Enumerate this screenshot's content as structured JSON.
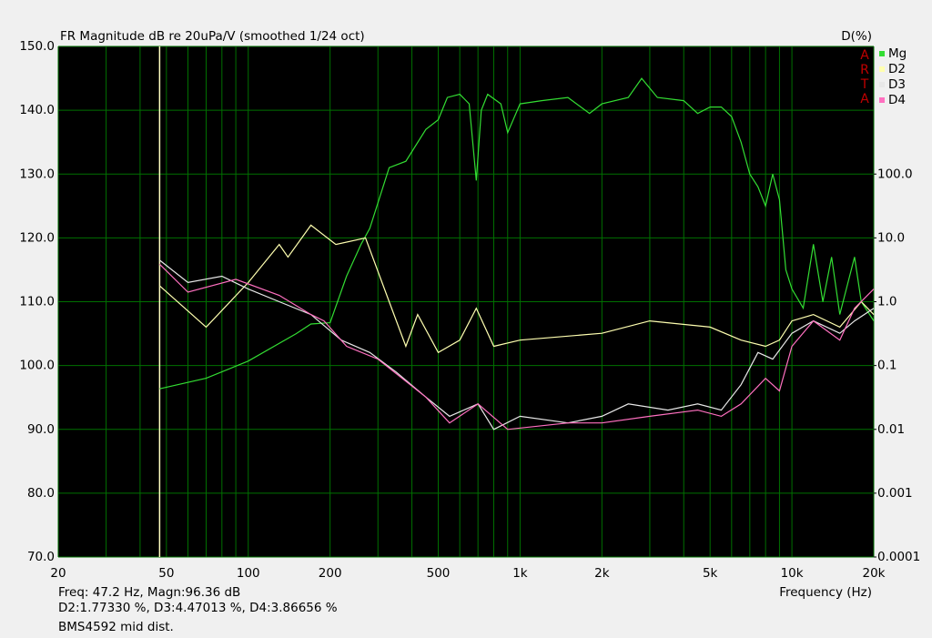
{
  "chart_data": {
    "type": "line",
    "title": "FR Magnitude dB re 20uPa/V (smoothed 1/24 oct)",
    "y2_label": "D(%)",
    "x_label": "Frequency (Hz)",
    "logo": "ARTA",
    "x_log": true,
    "y2_log": true,
    "grid": true,
    "legend": "top-right",
    "background": "#000000",
    "grid_color": "#007000",
    "cursor": {
      "x": 47.2,
      "color": "#ffffc0"
    },
    "readout": [
      "Freq: 47.2 Hz, Magn:96.36 dB",
      "D2:1.77330 %, D3:4.47013 %, D4:3.86656 %"
    ],
    "note": "BMS4592 mid dist.",
    "xlim": [
      20,
      20000
    ],
    "xticks": [
      20,
      50,
      100,
      200,
      500,
      {
        "value": 1000,
        "label": "1k"
      },
      {
        "value": 2000,
        "label": "2k"
      },
      {
        "value": 5000,
        "label": "5k"
      },
      {
        "value": 10000,
        "label": "10k"
      },
      {
        "value": 20000,
        "label": "20k"
      }
    ],
    "xgrid": [
      30,
      40,
      60,
      70,
      80,
      90,
      300,
      400,
      600,
      700,
      800,
      900,
      3000,
      4000,
      6000,
      7000,
      8000,
      9000
    ],
    "ylim": [
      70,
      150
    ],
    "yticks": [
      {
        "value": 70,
        "label": "70.0"
      },
      {
        "value": 80,
        "label": "80.0"
      },
      {
        "value": 90,
        "label": "90.0"
      },
      {
        "value": 100,
        "label": "100.0"
      },
      {
        "value": 110,
        "label": "110.0"
      },
      {
        "value": 120,
        "label": "120.0"
      },
      {
        "value": 130,
        "label": "130.0"
      },
      {
        "value": 140,
        "label": "140.0"
      },
      {
        "value": 150,
        "label": "150.0"
      }
    ],
    "y2lim": [
      0.0001,
      10000
    ],
    "y2ticks": [
      0.0001,
      0.001,
      0.01,
      0.1,
      {
        "value": 1,
        "label": "1.0"
      },
      {
        "value": 10,
        "label": "10.0"
      },
      {
        "value": 100,
        "label": "100.0"
      }
    ],
    "series": [
      {
        "name": "Mg",
        "color": "#33dd33",
        "x": [
          47.2,
          70,
          100,
          150,
          170,
          200,
          230,
          260,
          280,
          330,
          380,
          450,
          500,
          540,
          600,
          650,
          690,
          720,
          760,
          850,
          900,
          1000,
          1200,
          1500,
          1800,
          2000,
          2500,
          2800,
          3200,
          4000,
          4500,
          5000,
          5500,
          6000,
          6500,
          7000,
          7500,
          8000,
          8500,
          9000,
          9500,
          10000,
          11000,
          12000,
          13000,
          14000,
          15000,
          17000,
          18000,
          20000
        ],
        "values": [
          96.36,
          98,
          100.7,
          105,
          106.5,
          106.7,
          114,
          119,
          121.5,
          131,
          132,
          137,
          138.5,
          142,
          142.5,
          141,
          129,
          140,
          142.5,
          141,
          136.5,
          141,
          141.5,
          142,
          139.5,
          141,
          142,
          145,
          142,
          141.5,
          139.5,
          140.5,
          140.5,
          139,
          135,
          130,
          128,
          125,
          130,
          126,
          115,
          112,
          109,
          119,
          110,
          117,
          108,
          117,
          110,
          107
        ]
      },
      {
        "name": "D2",
        "color": "#ffffb0",
        "axis": "y2",
        "x": [
          47.2,
          70,
          100,
          130,
          140,
          170,
          210,
          270,
          330,
          380,
          420,
          500,
          600,
          690,
          800,
          1000,
          2000,
          3000,
          5000,
          6500,
          8000,
          9000,
          10000,
          12000,
          15000,
          18000,
          20000
        ],
        "values": [
          1.7733,
          0.4,
          2.0,
          7.9,
          5.0,
          15.8,
          7.9,
          10,
          1.0,
          0.2,
          0.63,
          0.16,
          0.25,
          0.79,
          0.2,
          0.25,
          0.32,
          0.5,
          0.4,
          0.25,
          0.2,
          0.25,
          0.5,
          0.63,
          0.4,
          1.0,
          0.63
        ]
      },
      {
        "name": "D3",
        "color": "#e8e8e8",
        "axis": "y2",
        "x": [
          47.2,
          60,
          80,
          100,
          130,
          170,
          220,
          280,
          350,
          450,
          550,
          700,
          800,
          1000,
          1500,
          2000,
          2500,
          3500,
          4500,
          5500,
          6500,
          7500,
          8500,
          10000,
          12000,
          15000,
          17000,
          20000
        ],
        "values": [
          4.47013,
          2.0,
          2.51,
          1.58,
          1.0,
          0.63,
          0.25,
          0.16,
          0.079,
          0.032,
          0.016,
          0.025,
          0.01,
          0.016,
          0.0126,
          0.016,
          0.025,
          0.02,
          0.025,
          0.02,
          0.05,
          0.16,
          0.126,
          0.32,
          0.5,
          0.32,
          0.5,
          0.79
        ]
      },
      {
        "name": "D4",
        "color": "#ff70c0",
        "axis": "y2",
        "x": [
          47.2,
          60,
          90,
          130,
          170,
          190,
          230,
          300,
          450,
          550,
          700,
          900,
          1500,
          2000,
          3000,
          4500,
          5500,
          6500,
          8000,
          9000,
          10000,
          12000,
          15000,
          17000,
          20000
        ],
        "values": [
          3.86656,
          1.41,
          2.24,
          1.26,
          0.63,
          0.5,
          0.2,
          0.126,
          0.032,
          0.0126,
          0.025,
          0.01,
          0.0126,
          0.0126,
          0.016,
          0.02,
          0.016,
          0.025,
          0.063,
          0.04,
          0.2,
          0.5,
          0.25,
          0.79,
          1.58
        ]
      }
    ]
  }
}
